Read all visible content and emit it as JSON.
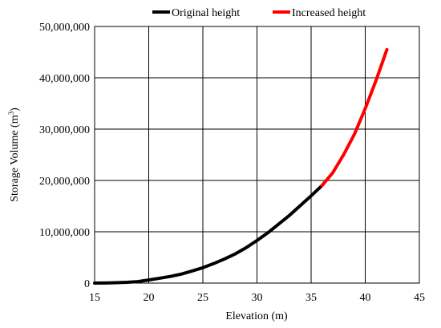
{
  "chart_data": {
    "type": "line",
    "xlabel": "Elevation (m)",
    "ylabel_main": "Storage Volume (m",
    "ylabel_sup": "3",
    "ylabel_close": ")",
    "xlim": [
      15,
      45
    ],
    "ylim": [
      0,
      50000000
    ],
    "x_ticks": [
      15,
      20,
      25,
      30,
      35,
      40,
      45
    ],
    "y_ticks": [
      0,
      10000000,
      20000000,
      30000000,
      40000000,
      50000000
    ],
    "x_tick_labels": [
      "15",
      "20",
      "25",
      "30",
      "35",
      "40",
      "45"
    ],
    "y_tick_labels": [
      "0",
      "10,000,000",
      "20,000,000",
      "30,000,000",
      "40,000,000",
      "50,000,000"
    ],
    "grid": true,
    "legend_position": "top",
    "series": [
      {
        "name": "Original height",
        "color": "#000000",
        "x": [
          15,
          16,
          17,
          18,
          19,
          20,
          21,
          22,
          23,
          24,
          25,
          26,
          27,
          28,
          29,
          30,
          31,
          32,
          33,
          34,
          35,
          36
        ],
        "y": [
          0,
          20000,
          80000,
          150000,
          300000,
          600000,
          950000,
          1300000,
          1750000,
          2350000,
          3000000,
          3800000,
          4700000,
          5700000,
          6900000,
          8300000,
          9800000,
          11500000,
          13200000,
          15100000,
          17000000,
          19000000
        ]
      },
      {
        "name": "Increased height",
        "color": "#ff0000",
        "x": [
          36,
          37,
          38,
          39,
          40,
          41,
          42
        ],
        "y": [
          19000000,
          21500000,
          25000000,
          29000000,
          34000000,
          39500000,
          45500000
        ]
      }
    ]
  }
}
